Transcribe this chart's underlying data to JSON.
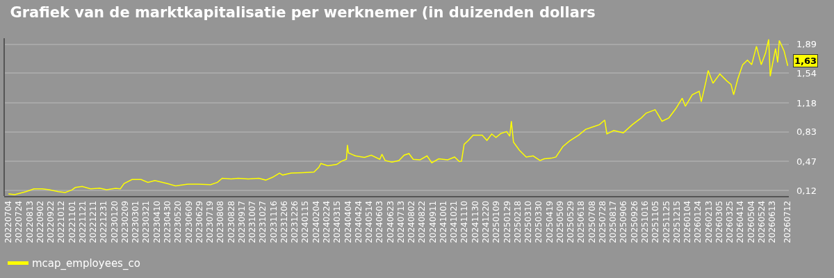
{
  "chart_data": {
    "type": "line",
    "title": "Grafiek van de marktkapitalisatie per werknemer (in duizenden dollars",
    "x": [
      "2022-07-04",
      "2022-07-16",
      "2022-08-06",
      "2022-08-21",
      "2022-09-06",
      "2022-09-19",
      "2022-10-06",
      "2022-10-19",
      "2022-11-01",
      "2022-11-07",
      "2022-11-20",
      "2022-12-06",
      "2022-12-23",
      "2023-01-05",
      "2023-01-22",
      "2023-01-31",
      "2023-02-07",
      "2023-02-22",
      "2023-03-11",
      "2023-03-24",
      "2023-04-06",
      "2023-04-29",
      "2023-05-15",
      "2023-06-07",
      "2023-06-27",
      "2023-07-20",
      "2023-08-02",
      "2023-08-11",
      "2023-08-28",
      "2023-09-10",
      "2023-09-29",
      "2023-10-19",
      "2023-11-01",
      "2023-11-14",
      "2023-11-27",
      "2023-12-03",
      "2023-12-19",
      "2024-01-09",
      "2024-01-31",
      "2024-02-09",
      "2024-02-13",
      "2024-02-26",
      "2024-03-14",
      "2024-03-23",
      "2024-04-01",
      "2024-04-03",
      "2024-04-05",
      "2024-04-18",
      "2024-05-05",
      "2024-05-18",
      "2024-06-03",
      "2024-06-07",
      "2024-06-13",
      "2024-06-26",
      "2024-07-09",
      "2024-07-19",
      "2024-07-28",
      "2024-08-05",
      "2024-08-18",
      "2024-08-31",
      "2024-09-09",
      "2024-09-22",
      "2024-10-09",
      "2024-10-22",
      "2024-10-31",
      "2024-11-04",
      "2024-11-09",
      "2024-11-17",
      "2024-11-26",
      "2024-12-13",
      "2024-12-22",
      "2024-12-31",
      "2025-01-08",
      "2025-01-17",
      "2025-01-28",
      "2025-02-03",
      "2025-02-06",
      "2025-02-10",
      "2025-02-21",
      "2025-03-06",
      "2025-03-19",
      "2025-04-01",
      "2025-04-09",
      "2025-04-22",
      "2025-05-01",
      "2025-05-14",
      "2025-05-27",
      "2025-06-13",
      "2025-06-26",
      "2025-07-09",
      "2025-07-22",
      "2025-08-01",
      "2025-08-05",
      "2025-08-18",
      "2025-09-05",
      "2025-09-22",
      "2025-10-09",
      "2025-10-18",
      "2025-11-04",
      "2025-11-17",
      "2025-11-30",
      "2025-12-13",
      "2025-12-25",
      "2025-12-31",
      "2026-01-13",
      "2026-01-26",
      "2026-01-30",
      "2026-02-08",
      "2026-02-12",
      "2026-02-21",
      "2026-03-06",
      "2026-03-19",
      "2026-03-27",
      "2026-04-01",
      "2026-04-09",
      "2026-04-18",
      "2026-04-27",
      "2026-05-05",
      "2026-05-14",
      "2026-05-23",
      "2026-05-31",
      "2026-06-06",
      "2026-06-09",
      "2026-06-13",
      "2026-06-19",
      "2026-06-23",
      "2026-06-26",
      "2026-07-05",
      "2026-07-12"
    ],
    "series": [
      {
        "name": "mcap_employees_co",
        "color": "#ffff00",
        "values": [
          0.078,
          0.07,
          0.106,
          0.14,
          0.14,
          0.128,
          0.106,
          0.095,
          0.128,
          0.156,
          0.168,
          0.14,
          0.148,
          0.128,
          0.145,
          0.14,
          0.204,
          0.252,
          0.252,
          0.218,
          0.24,
          0.204,
          0.176,
          0.196,
          0.196,
          0.19,
          0.218,
          0.268,
          0.26,
          0.268,
          0.26,
          0.268,
          0.246,
          0.28,
          0.33,
          0.307,
          0.33,
          0.336,
          0.344,
          0.4,
          0.447,
          0.42,
          0.436,
          0.475,
          0.497,
          0.671,
          0.575,
          0.539,
          0.52,
          0.548,
          0.497,
          0.559,
          0.483,
          0.464,
          0.483,
          0.548,
          0.567,
          0.497,
          0.491,
          0.539,
          0.456,
          0.503,
          0.491,
          0.525,
          0.47,
          0.475,
          0.679,
          0.727,
          0.791,
          0.791,
          0.727,
          0.805,
          0.763,
          0.81,
          0.833,
          0.777,
          0.959,
          0.707,
          0.609,
          0.525,
          0.539,
          0.483,
          0.503,
          0.511,
          0.525,
          0.651,
          0.721,
          0.791,
          0.861,
          0.889,
          0.917,
          0.973,
          0.805,
          0.847,
          0.819,
          0.917,
          1.0,
          1.057,
          1.099,
          0.959,
          1.0,
          1.112,
          1.238,
          1.14,
          1.28,
          1.322,
          1.196,
          1.448,
          1.574,
          1.42,
          1.532,
          1.448,
          1.406,
          1.28,
          1.476,
          1.644,
          1.7,
          1.644,
          1.867,
          1.644,
          1.783,
          1.951,
          1.504,
          1.644,
          1.84,
          1.672,
          1.938,
          1.812,
          1.63
        ]
      }
    ],
    "xlim": [
      "2022-06-26",
      "2026-07-14"
    ],
    "xticks": [
      {
        "value": "2022-07-04",
        "label": "20220704"
      },
      {
        "value": "2022-07-24",
        "label": "20220724"
      },
      {
        "value": "2022-08-13",
        "label": "20220813"
      },
      {
        "value": "2022-09-02",
        "label": "20220902"
      },
      {
        "value": "2022-09-22",
        "label": "20220922"
      },
      {
        "value": "2022-10-12",
        "label": "20221012"
      },
      {
        "value": "2022-11-01",
        "label": "20221101"
      },
      {
        "value": "2022-11-21",
        "label": "20221121"
      },
      {
        "value": "2022-12-11",
        "label": "20221211"
      },
      {
        "value": "2022-12-31",
        "label": "20221231"
      },
      {
        "value": "2023-01-20",
        "label": "20230120"
      },
      {
        "value": "2023-02-09",
        "label": "20230209"
      },
      {
        "value": "2023-03-01",
        "label": "20230301"
      },
      {
        "value": "2023-03-21",
        "label": "20230321"
      },
      {
        "value": "2023-04-10",
        "label": "20230410"
      },
      {
        "value": "2023-04-30",
        "label": "20230430"
      },
      {
        "value": "2023-05-20",
        "label": "20230520"
      },
      {
        "value": "2023-06-09",
        "label": "20230609"
      },
      {
        "value": "2023-06-29",
        "label": "20230629"
      },
      {
        "value": "2023-07-19",
        "label": "20230719"
      },
      {
        "value": "2023-08-08",
        "label": "20230808"
      },
      {
        "value": "2023-08-28",
        "label": "20230828"
      },
      {
        "value": "2023-09-17",
        "label": "20230917"
      },
      {
        "value": "2023-10-07",
        "label": "20231007"
      },
      {
        "value": "2023-10-27",
        "label": "20231027"
      },
      {
        "value": "2023-11-16",
        "label": "20231116"
      },
      {
        "value": "2023-12-06",
        "label": "20231206"
      },
      {
        "value": "2023-12-26",
        "label": "20231226"
      },
      {
        "value": "2024-01-15",
        "label": "20240115"
      },
      {
        "value": "2024-02-04",
        "label": "20240204"
      },
      {
        "value": "2024-02-24",
        "label": "20240224"
      },
      {
        "value": "2024-03-15",
        "label": "20240315"
      },
      {
        "value": "2024-04-04",
        "label": "20240404"
      },
      {
        "value": "2024-04-24",
        "label": "20240424"
      },
      {
        "value": "2024-05-14",
        "label": "20240514"
      },
      {
        "value": "2024-06-03",
        "label": "20240603"
      },
      {
        "value": "2024-06-23",
        "label": "20240623"
      },
      {
        "value": "2024-07-13",
        "label": "20240713"
      },
      {
        "value": "2024-08-02",
        "label": "20240802"
      },
      {
        "value": "2024-08-22",
        "label": "20240822"
      },
      {
        "value": "2024-09-11",
        "label": "20240911"
      },
      {
        "value": "2024-10-01",
        "label": "20241001"
      },
      {
        "value": "2024-10-21",
        "label": "20241021"
      },
      {
        "value": "2024-11-10",
        "label": "20241110"
      },
      {
        "value": "2024-11-30",
        "label": "20241130"
      },
      {
        "value": "2024-12-20",
        "label": "20241220"
      },
      {
        "value": "2025-01-09",
        "label": "20250109"
      },
      {
        "value": "2025-01-29",
        "label": "20250129"
      },
      {
        "value": "2025-02-18",
        "label": "20250218"
      },
      {
        "value": "2025-03-10",
        "label": "20250310"
      },
      {
        "value": "2025-03-30",
        "label": "20250330"
      },
      {
        "value": "2025-04-19",
        "label": "20250419"
      },
      {
        "value": "2025-05-09",
        "label": "20250509"
      },
      {
        "value": "2025-05-29",
        "label": "20250529"
      },
      {
        "value": "2025-06-18",
        "label": "20250618"
      },
      {
        "value": "2025-07-08",
        "label": "20250708"
      },
      {
        "value": "2025-07-28",
        "label": "20250728"
      },
      {
        "value": "2025-08-17",
        "label": "20250817"
      },
      {
        "value": "2025-09-06",
        "label": "20250906"
      },
      {
        "value": "2025-09-26",
        "label": "20250926"
      },
      {
        "value": "2025-10-16",
        "label": "20251016"
      },
      {
        "value": "2025-11-05",
        "label": "20251105"
      },
      {
        "value": "2025-11-25",
        "label": "20251125"
      },
      {
        "value": "2025-12-15",
        "label": "20251215"
      },
      {
        "value": "2026-01-04",
        "label": "20260104"
      },
      {
        "value": "2026-01-24",
        "label": "20260124"
      },
      {
        "value": "2026-02-13",
        "label": "20260213"
      },
      {
        "value": "2026-03-05",
        "label": "20260305"
      },
      {
        "value": "2026-03-25",
        "label": "20260325"
      },
      {
        "value": "2026-04-14",
        "label": "20260414"
      },
      {
        "value": "2026-05-04",
        "label": "20260504"
      },
      {
        "value": "2026-05-24",
        "label": "20260524"
      },
      {
        "value": "2026-06-13",
        "label": "20260613"
      },
      {
        "value": "2026-07-12",
        "label": "20260712"
      }
    ],
    "ylim": [
      0.053,
      1.965
    ],
    "yticks": [
      {
        "value": 0.12,
        "label": "0,12"
      },
      {
        "value": 0.47,
        "label": "0,47"
      },
      {
        "value": 0.83,
        "label": "0,83"
      },
      {
        "value": 1.18,
        "label": "1,18"
      },
      {
        "value": 1.54,
        "label": "1,54"
      },
      {
        "value": 1.89,
        "label": "1,89"
      }
    ],
    "annotations": [
      {
        "text": "1,63",
        "x": "2026-07-12",
        "y": 1.63
      }
    ],
    "grid": "y",
    "legend": "bottom left",
    "line_style": "solid",
    "marker": "none"
  }
}
